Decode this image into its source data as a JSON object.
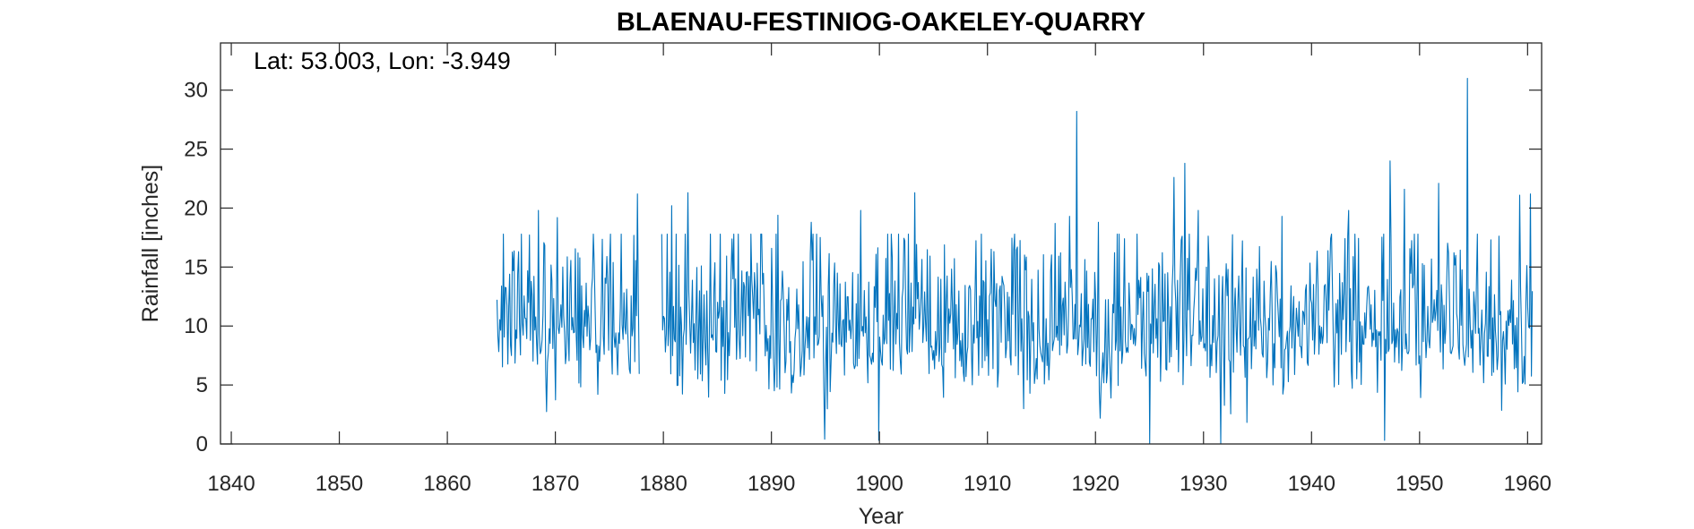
{
  "chart_data": {
    "type": "line",
    "title": "BLAENAU-FESTINIOG-OAKELEY-QUARRY",
    "annotation": "Lat: 53.003, Lon: -3.949",
    "xlabel": "Year",
    "ylabel": "Rainfall [inches]",
    "xlim": [
      1839,
      1961.3
    ],
    "ylim": [
      0,
      34
    ],
    "xticks": [
      1840,
      1850,
      1860,
      1870,
      1880,
      1890,
      1900,
      1910,
      1920,
      1930,
      1940,
      1950,
      1960
    ],
    "yticks": [
      0,
      5,
      10,
      15,
      20,
      25,
      30
    ],
    "grid": false,
    "line_color": "#0072BD",
    "data_range": [
      1864.6,
      1960.5
    ],
    "missing_period": [
      1877.8,
      1879.8
    ],
    "notable_peaks": [
      {
        "x": 1865.8,
        "y": 14.4
      },
      {
        "x": 1866.6,
        "y": 16.3
      },
      {
        "x": 1868.4,
        "y": 19.8
      },
      {
        "x": 1870.2,
        "y": 19.2
      },
      {
        "x": 1872.1,
        "y": 16.2
      },
      {
        "x": 1874.8,
        "y": 15.9
      },
      {
        "x": 1877.6,
        "y": 21.2
      },
      {
        "x": 1880.8,
        "y": 20.2
      },
      {
        "x": 1882.3,
        "y": 21.3
      },
      {
        "x": 1890.6,
        "y": 19.4
      },
      {
        "x": 1893.7,
        "y": 18.8
      },
      {
        "x": 1898.3,
        "y": 19.8
      },
      {
        "x": 1903.3,
        "y": 21.3
      },
      {
        "x": 1912.4,
        "y": 16.5
      },
      {
        "x": 1916.3,
        "y": 18.7
      },
      {
        "x": 1917.6,
        "y": 19.3
      },
      {
        "x": 1918.3,
        "y": 28.2
      },
      {
        "x": 1920.3,
        "y": 18.8
      },
      {
        "x": 1927.3,
        "y": 22.6
      },
      {
        "x": 1928.3,
        "y": 23.8
      },
      {
        "x": 1929.5,
        "y": 19.8
      },
      {
        "x": 1937.3,
        "y": 19.3
      },
      {
        "x": 1943.4,
        "y": 19.8
      },
      {
        "x": 1947.3,
        "y": 24.0
      },
      {
        "x": 1948.6,
        "y": 21.6
      },
      {
        "x": 1951.8,
        "y": 22.1
      },
      {
        "x": 1954.4,
        "y": 31.0
      },
      {
        "x": 1959.3,
        "y": 21.1
      },
      {
        "x": 1960.3,
        "y": 21.2
      }
    ],
    "notable_minima": [
      {
        "x": 1894.9,
        "y": 0.4
      },
      {
        "x": 1899.9,
        "y": 0.3
      },
      {
        "x": 1925.0,
        "y": 0.0
      },
      {
        "x": 1931.6,
        "y": 0.0
      },
      {
        "x": 1946.8,
        "y": 0.3
      }
    ]
  }
}
